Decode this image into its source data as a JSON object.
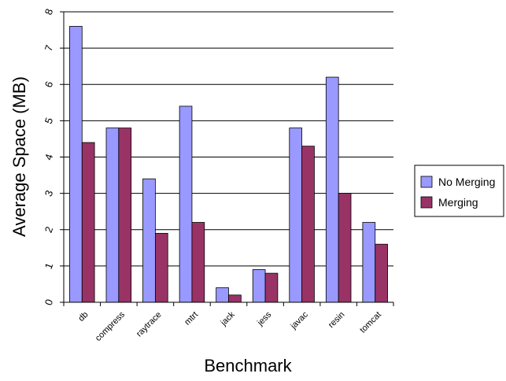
{
  "chart_data": {
    "type": "bar",
    "title": "",
    "xlabel": "Benchmark",
    "ylabel": "Average Space (MB)",
    "ylim": [
      0,
      8
    ],
    "yticks": [
      0,
      1,
      2,
      3,
      4,
      5,
      6,
      7,
      8
    ],
    "grid": true,
    "legend_position": "right",
    "categories": [
      "db",
      "compress",
      "raytrace",
      "mtrt",
      "jack",
      "jess",
      "javac",
      "resin",
      "tomcat"
    ],
    "series": [
      {
        "name": "No Merging",
        "color": "#9999ff",
        "values": [
          7.6,
          4.8,
          3.4,
          5.4,
          0.4,
          0.9,
          4.8,
          6.2,
          2.2
        ]
      },
      {
        "name": "Merging",
        "color": "#993366",
        "values": [
          4.4,
          4.8,
          1.9,
          2.2,
          0.2,
          0.8,
          4.3,
          3.0,
          1.6
        ]
      }
    ]
  }
}
